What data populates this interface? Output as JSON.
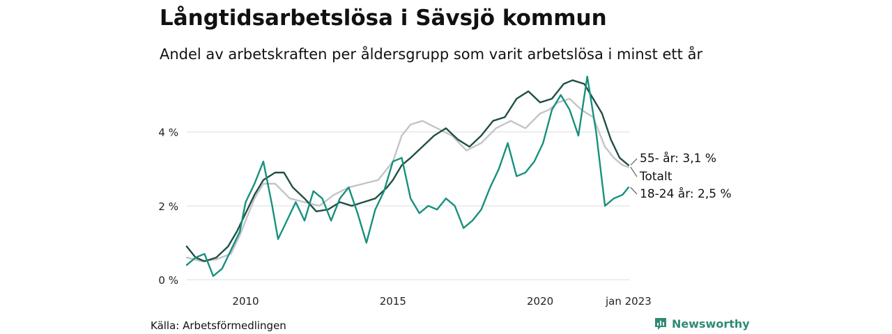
{
  "title": "Långtidsarbetslösa i Sävsjö kommun",
  "subtitle": "Andel av arbetskraften per åldersgrupp som varit arbetslösa i minst ett år",
  "source": "Källa: Arbetsförmedlingen",
  "brand": {
    "name": "Newsworthy",
    "icon": "newsworthy-logo-icon",
    "color": "#2e8b74"
  },
  "chart_data": {
    "type": "line",
    "ylim": [
      0,
      5.5
    ],
    "yticks": [
      {
        "value": 0,
        "label": "0 %"
      },
      {
        "value": 2,
        "label": "2 %"
      },
      {
        "value": 4,
        "label": "4 %"
      }
    ],
    "xlim": [
      2008.0,
      2023.05
    ],
    "xticks": [
      {
        "value": 2010,
        "label": "2010"
      },
      {
        "value": 2015,
        "label": "2015"
      },
      {
        "value": 2020,
        "label": "2020"
      },
      {
        "value": 2023.0,
        "label": "jan 2023"
      }
    ],
    "grid": true,
    "series": [
      {
        "name": "Totalt",
        "end_label": "Totalt",
        "color": "#c4c3c8",
        "x": [
          2008.0,
          2008.5,
          2009.0,
          2009.5,
          2009.8,
          2010.0,
          2010.3,
          2010.6,
          2011.0,
          2011.5,
          2012.0,
          2012.5,
          2013.0,
          2013.5,
          2014.0,
          2014.5,
          2015.0,
          2015.3,
          2015.6,
          2016.0,
          2016.5,
          2017.0,
          2017.5,
          2018.0,
          2018.5,
          2019.0,
          2019.5,
          2020.0,
          2020.3,
          2020.6,
          2021.0,
          2021.4,
          2021.8,
          2022.2,
          2022.5,
          2022.8,
          2023.0
        ],
        "y": [
          0.6,
          0.5,
          0.55,
          0.7,
          1.2,
          1.6,
          2.2,
          2.6,
          2.6,
          2.2,
          2.1,
          2.0,
          2.3,
          2.5,
          2.6,
          2.7,
          3.2,
          3.9,
          4.2,
          4.3,
          4.1,
          3.9,
          3.5,
          3.7,
          4.1,
          4.3,
          4.1,
          4.5,
          4.6,
          4.8,
          4.9,
          4.6,
          4.4,
          3.6,
          3.3,
          3.1,
          3.05
        ]
      },
      {
        "name": "55- år",
        "end_label": "55- år: 3,1 %",
        "color": "#1f4e45",
        "x": [
          2008.0,
          2008.3,
          2008.6,
          2009.0,
          2009.4,
          2009.7,
          2010.0,
          2010.3,
          2010.6,
          2011.0,
          2011.3,
          2011.6,
          2012.0,
          2012.4,
          2012.8,
          2013.2,
          2013.6,
          2014.0,
          2014.4,
          2014.8,
          2015.0,
          2015.3,
          2015.6,
          2016.0,
          2016.4,
          2016.8,
          2017.2,
          2017.6,
          2018.0,
          2018.4,
          2018.8,
          2019.2,
          2019.6,
          2020.0,
          2020.4,
          2020.8,
          2021.1,
          2021.5,
          2021.8,
          2022.1,
          2022.4,
          2022.7,
          2023.0
        ],
        "y": [
          0.9,
          0.6,
          0.5,
          0.6,
          0.9,
          1.3,
          1.8,
          2.3,
          2.7,
          2.9,
          2.9,
          2.5,
          2.2,
          1.85,
          1.9,
          2.1,
          2.0,
          2.1,
          2.2,
          2.5,
          2.7,
          3.1,
          3.3,
          3.6,
          3.9,
          4.1,
          3.8,
          3.6,
          3.9,
          4.3,
          4.4,
          4.9,
          5.1,
          4.8,
          4.9,
          5.3,
          5.4,
          5.3,
          4.9,
          4.5,
          3.8,
          3.3,
          3.1
        ]
      },
      {
        "name": "18-24 år",
        "end_label": "18-24 år: 2,5 %",
        "color": "#17907d",
        "x": [
          2008.0,
          2008.3,
          2008.6,
          2008.9,
          2009.2,
          2009.5,
          2009.8,
          2010.0,
          2010.3,
          2010.6,
          2010.9,
          2011.1,
          2011.4,
          2011.7,
          2012.0,
          2012.3,
          2012.6,
          2012.9,
          2013.2,
          2013.5,
          2013.8,
          2014.1,
          2014.4,
          2014.7,
          2015.0,
          2015.3,
          2015.6,
          2015.9,
          2016.2,
          2016.5,
          2016.8,
          2017.1,
          2017.4,
          2017.7,
          2018.0,
          2018.3,
          2018.6,
          2018.9,
          2019.2,
          2019.5,
          2019.8,
          2020.1,
          2020.4,
          2020.7,
          2021.0,
          2021.3,
          2021.6,
          2021.9,
          2022.2,
          2022.5,
          2022.8,
          2023.0
        ],
        "y": [
          0.4,
          0.6,
          0.7,
          0.1,
          0.3,
          0.8,
          1.3,
          2.1,
          2.6,
          3.2,
          2.0,
          1.1,
          1.6,
          2.1,
          1.6,
          2.4,
          2.2,
          1.6,
          2.2,
          2.5,
          1.8,
          1.0,
          1.9,
          2.4,
          3.2,
          3.3,
          2.2,
          1.8,
          2.0,
          1.9,
          2.2,
          2.0,
          1.4,
          1.6,
          1.9,
          2.5,
          3.0,
          3.7,
          2.8,
          2.9,
          3.2,
          3.7,
          4.6,
          5.0,
          4.6,
          3.9,
          5.5,
          4.0,
          2.0,
          2.2,
          2.3,
          2.5
        ]
      }
    ]
  }
}
